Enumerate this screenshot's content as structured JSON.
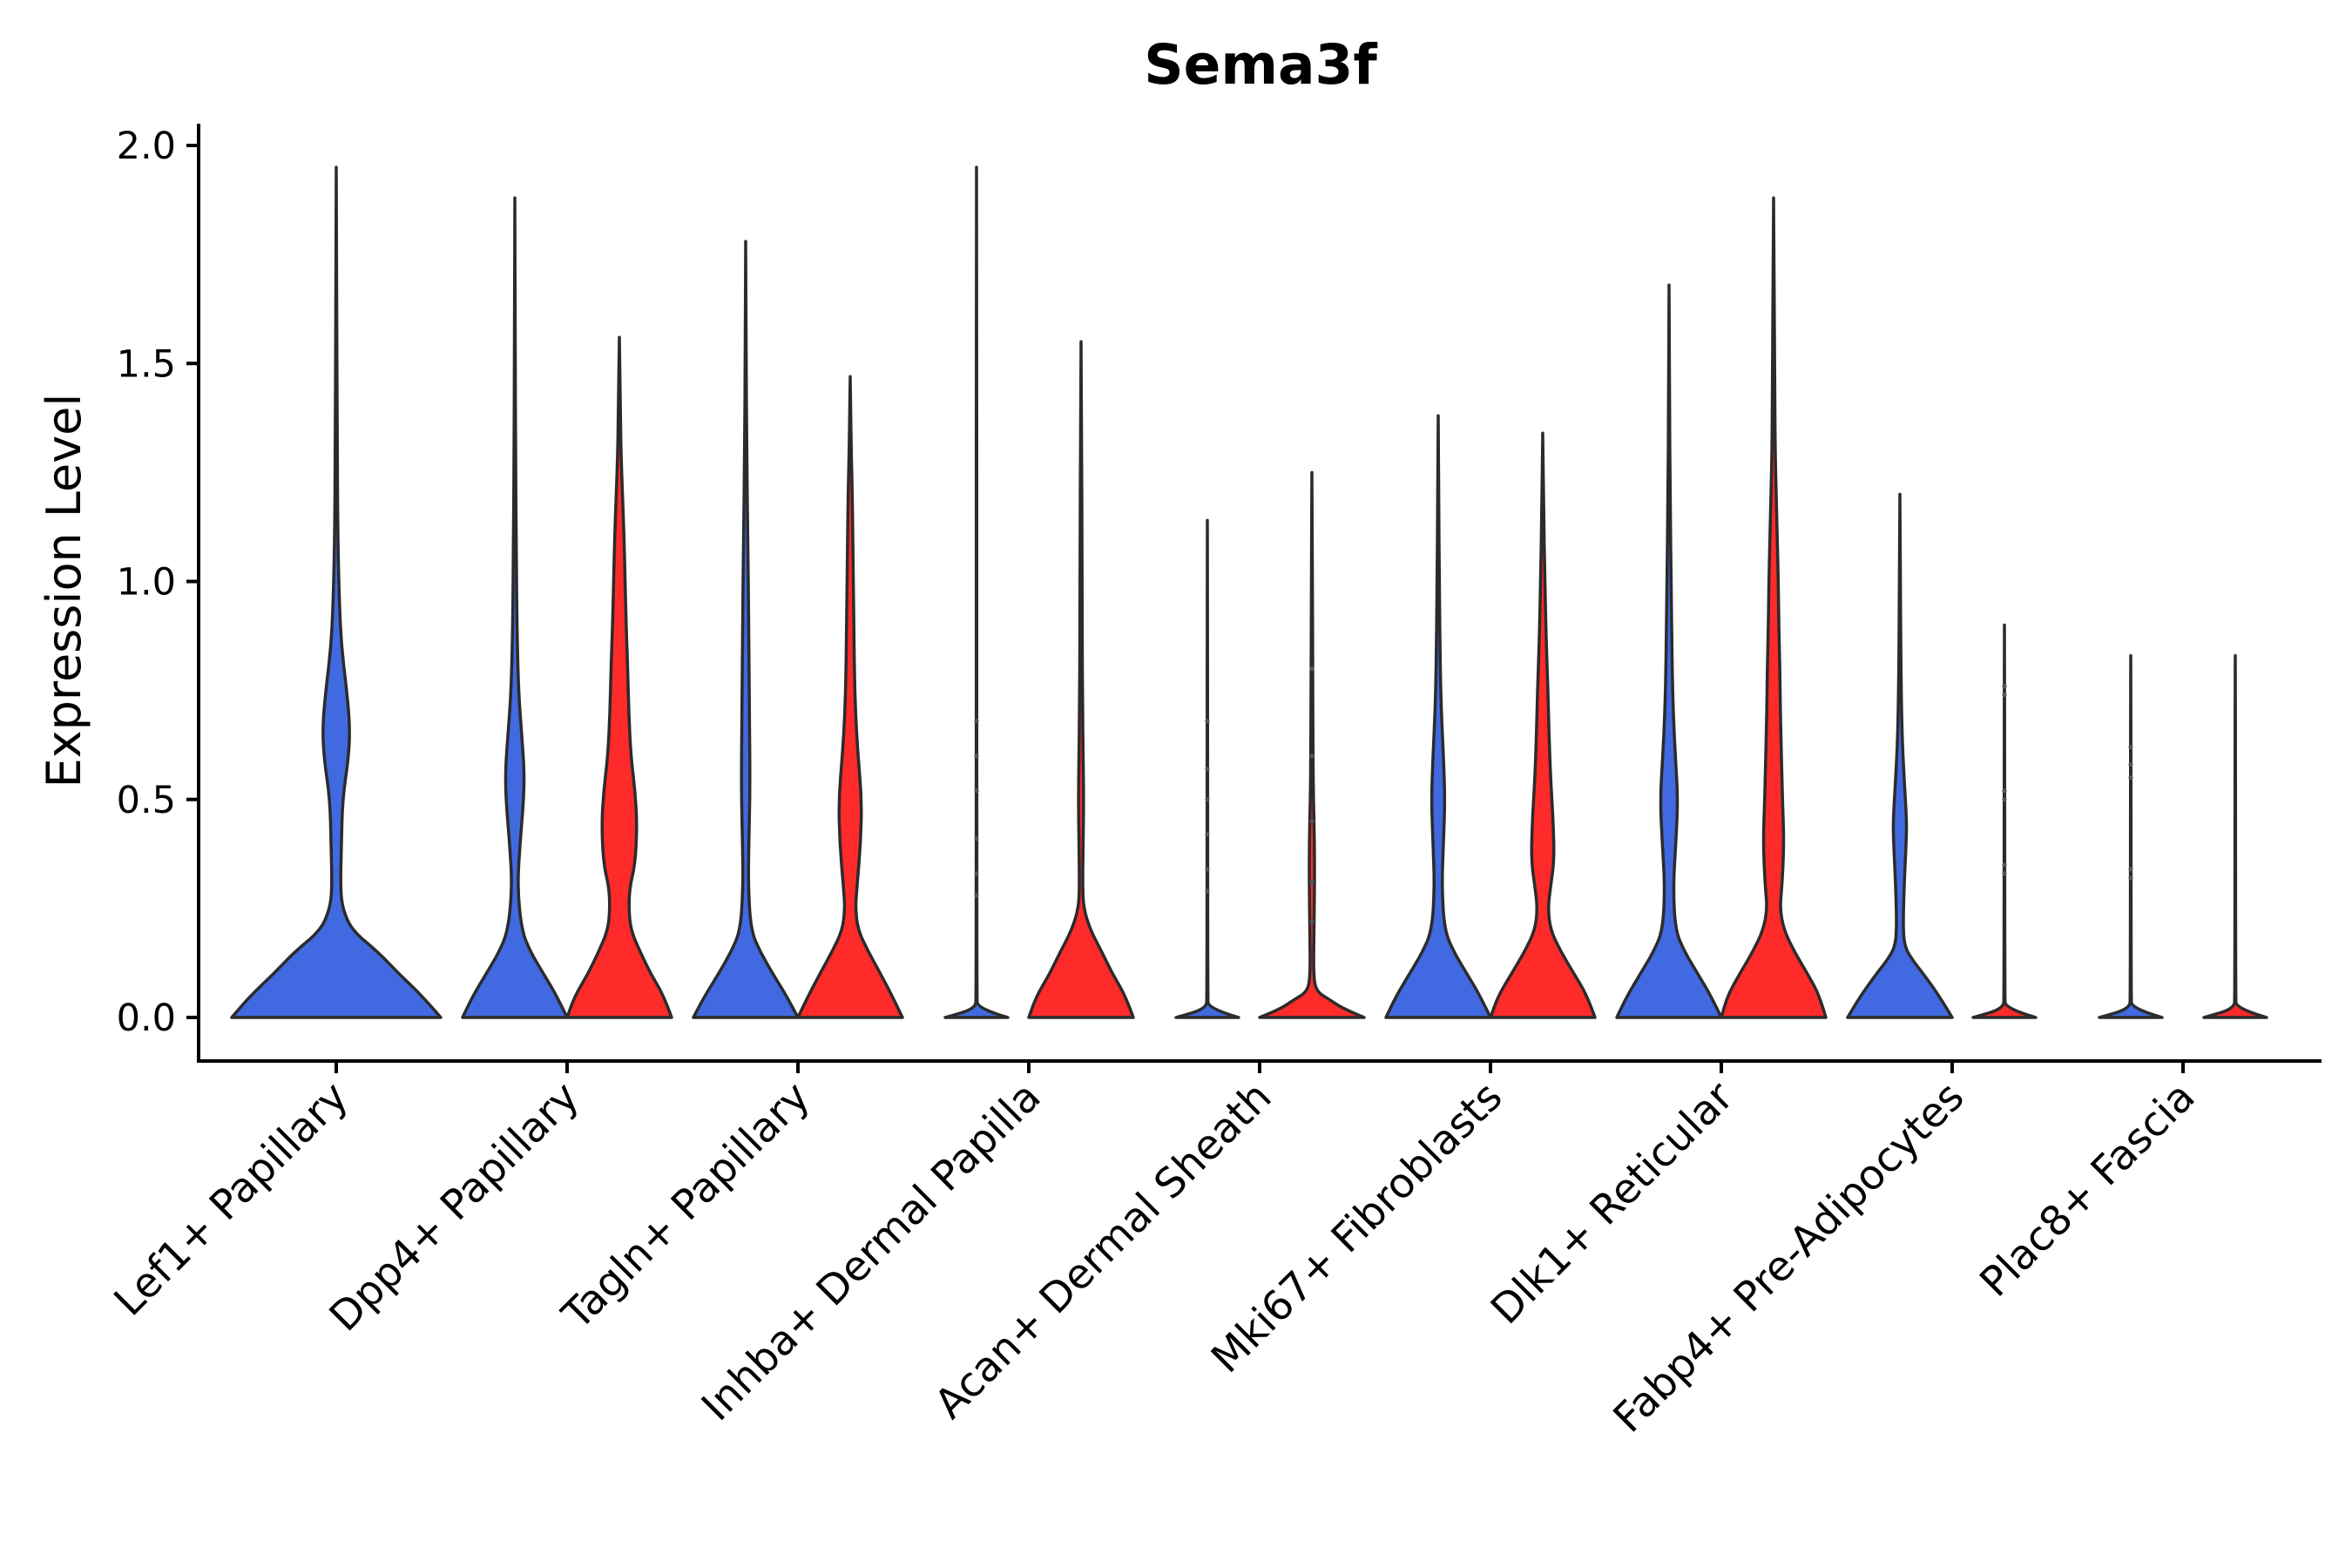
{
  "chart_data": {
    "type": "violin",
    "title": "Sema3f",
    "xlabel": "",
    "ylabel": "Expression Level",
    "ylim": [
      -0.1,
      2.05
    ],
    "yticks": [
      0.0,
      0.5,
      1.0,
      1.5,
      2.0
    ],
    "ytick_labels": [
      "0.0",
      "0.5",
      "1.0",
      "1.5",
      "2.0"
    ],
    "groups": [
      "Lef1+ Papillary",
      "Dpp4+ Papillary",
      "Tagln+ Papillary",
      "Inhba+ Dermal Papilla",
      "Acan+ Dermal Sheath",
      "Mki67+ Fibroblasts",
      "Dlk1+ Reticular",
      "Fabp4+ Pre-Adipocytes",
      "Plac8+ Fascia"
    ],
    "split_colors": {
      "blue": "#4169E1",
      "red": "#FF2A2A"
    },
    "violins": [
      {
        "group": 0,
        "side": "single",
        "color": "#4169E1",
        "max": 1.95,
        "profile": [
          [
            0,
            1.0
          ],
          [
            0.05,
            0.82
          ],
          [
            0.1,
            0.6
          ],
          [
            0.15,
            0.4
          ],
          [
            0.2,
            0.15
          ],
          [
            0.25,
            0.06
          ],
          [
            0.3,
            0.04
          ],
          [
            0.4,
            0.05
          ],
          [
            0.5,
            0.06
          ],
          [
            0.6,
            0.12
          ],
          [
            0.67,
            0.13
          ],
          [
            0.75,
            0.1
          ],
          [
            0.85,
            0.05
          ],
          [
            0.95,
            0.03
          ],
          [
            1.1,
            0.015
          ],
          [
            1.3,
            0.01
          ],
          [
            1.5,
            0.006
          ],
          [
            1.7,
            0.004
          ],
          [
            1.95,
            0.0
          ]
        ]
      },
      {
        "group": 1,
        "side": "blue",
        "color": "#4169E1",
        "max": 1.88,
        "profile": [
          [
            0,
            1.0
          ],
          [
            0.05,
            0.8
          ],
          [
            0.1,
            0.55
          ],
          [
            0.15,
            0.3
          ],
          [
            0.2,
            0.13
          ],
          [
            0.3,
            0.05
          ],
          [
            0.4,
            0.1
          ],
          [
            0.5,
            0.17
          ],
          [
            0.57,
            0.18
          ],
          [
            0.65,
            0.13
          ],
          [
            0.75,
            0.07
          ],
          [
            0.9,
            0.04
          ],
          [
            1.1,
            0.025
          ],
          [
            1.3,
            0.015
          ],
          [
            1.5,
            0.008
          ],
          [
            1.7,
            0.004
          ],
          [
            1.88,
            0.0
          ]
        ]
      },
      {
        "group": 1,
        "side": "red",
        "color": "#FF2A2A",
        "max": 1.56,
        "profile": [
          [
            0,
            1.0
          ],
          [
            0.05,
            0.85
          ],
          [
            0.1,
            0.6
          ],
          [
            0.15,
            0.4
          ],
          [
            0.2,
            0.22
          ],
          [
            0.25,
            0.18
          ],
          [
            0.3,
            0.2
          ],
          [
            0.35,
            0.3
          ],
          [
            0.44,
            0.34
          ],
          [
            0.52,
            0.3
          ],
          [
            0.6,
            0.22
          ],
          [
            0.7,
            0.18
          ],
          [
            0.8,
            0.16
          ],
          [
            0.9,
            0.13
          ],
          [
            1.0,
            0.11
          ],
          [
            1.1,
            0.09
          ],
          [
            1.2,
            0.06
          ],
          [
            1.3,
            0.03
          ],
          [
            1.4,
            0.02
          ],
          [
            1.56,
            0.0
          ]
        ]
      },
      {
        "group": 2,
        "side": "blue",
        "color": "#4169E1",
        "max": 1.78,
        "profile": [
          [
            0,
            1.0
          ],
          [
            0.05,
            0.78
          ],
          [
            0.1,
            0.52
          ],
          [
            0.15,
            0.28
          ],
          [
            0.2,
            0.1
          ],
          [
            0.3,
            0.05
          ],
          [
            0.4,
            0.06
          ],
          [
            0.5,
            0.08
          ],
          [
            0.6,
            0.08
          ],
          [
            0.7,
            0.07
          ],
          [
            0.9,
            0.06
          ],
          [
            1.1,
            0.04
          ],
          [
            1.3,
            0.02
          ],
          [
            1.5,
            0.01
          ],
          [
            1.78,
            0.0
          ]
        ]
      },
      {
        "group": 2,
        "side": "red",
        "color": "#FF2A2A",
        "max": 1.47,
        "profile": [
          [
            0,
            1.0
          ],
          [
            0.05,
            0.8
          ],
          [
            0.1,
            0.58
          ],
          [
            0.15,
            0.35
          ],
          [
            0.2,
            0.15
          ],
          [
            0.25,
            0.1
          ],
          [
            0.3,
            0.13
          ],
          [
            0.4,
            0.2
          ],
          [
            0.5,
            0.22
          ],
          [
            0.6,
            0.15
          ],
          [
            0.7,
            0.1
          ],
          [
            0.8,
            0.08
          ],
          [
            0.9,
            0.07
          ],
          [
            1.0,
            0.06
          ],
          [
            1.1,
            0.05
          ],
          [
            1.2,
            0.04
          ],
          [
            1.3,
            0.02
          ],
          [
            1.47,
            0.0
          ]
        ]
      },
      {
        "group": 3,
        "side": "blue",
        "color": "#4169E1",
        "max": 1.95,
        "profile": [
          [
            0,
            0.6
          ],
          [
            0.02,
            0.02
          ],
          [
            0.05,
            0.008
          ],
          [
            0.5,
            0.005
          ],
          [
            1.0,
            0.005
          ],
          [
            1.5,
            0.004
          ],
          [
            1.95,
            0.0
          ]
        ]
      },
      {
        "group": 3,
        "side": "red",
        "color": "#FF2A2A",
        "max": 1.55,
        "profile": [
          [
            0,
            1.0
          ],
          [
            0.05,
            0.85
          ],
          [
            0.1,
            0.6
          ],
          [
            0.15,
            0.4
          ],
          [
            0.2,
            0.18
          ],
          [
            0.25,
            0.05
          ],
          [
            0.3,
            0.03
          ],
          [
            0.4,
            0.04
          ],
          [
            0.5,
            0.05
          ],
          [
            0.6,
            0.04
          ],
          [
            0.7,
            0.03
          ],
          [
            0.9,
            0.02
          ],
          [
            1.1,
            0.02
          ],
          [
            1.3,
            0.01
          ],
          [
            1.55,
            0.0
          ]
        ]
      },
      {
        "group": 4,
        "side": "blue",
        "color": "#4169E1",
        "max": 1.14,
        "profile": [
          [
            0,
            0.6
          ],
          [
            0.02,
            0.02
          ],
          [
            0.05,
            0.008
          ],
          [
            0.5,
            0.005
          ],
          [
            1.14,
            0.0
          ]
        ]
      },
      {
        "group": 4,
        "side": "red",
        "color": "#FF2A2A",
        "max": 1.25,
        "profile": [
          [
            0,
            1.0
          ],
          [
            0.02,
            0.6
          ],
          [
            0.04,
            0.35
          ],
          [
            0.06,
            0.08
          ],
          [
            0.1,
            0.03
          ],
          [
            0.2,
            0.04
          ],
          [
            0.3,
            0.05
          ],
          [
            0.4,
            0.05
          ],
          [
            0.5,
            0.03
          ],
          [
            0.6,
            0.02
          ],
          [
            0.8,
            0.015
          ],
          [
            1.0,
            0.01
          ],
          [
            1.25,
            0.0
          ]
        ]
      },
      {
        "group": 5,
        "side": "blue",
        "color": "#4169E1",
        "max": 1.38,
        "profile": [
          [
            0,
            1.0
          ],
          [
            0.05,
            0.8
          ],
          [
            0.1,
            0.55
          ],
          [
            0.15,
            0.3
          ],
          [
            0.2,
            0.12
          ],
          [
            0.3,
            0.07
          ],
          [
            0.4,
            0.1
          ],
          [
            0.5,
            0.13
          ],
          [
            0.6,
            0.1
          ],
          [
            0.7,
            0.06
          ],
          [
            0.8,
            0.04
          ],
          [
            1.0,
            0.02
          ],
          [
            1.2,
            0.01
          ],
          [
            1.38,
            0.0
          ]
        ]
      },
      {
        "group": 5,
        "side": "red",
        "color": "#FF2A2A",
        "max": 1.34,
        "profile": [
          [
            0,
            1.0
          ],
          [
            0.05,
            0.85
          ],
          [
            0.1,
            0.6
          ],
          [
            0.15,
            0.35
          ],
          [
            0.2,
            0.15
          ],
          [
            0.25,
            0.1
          ],
          [
            0.3,
            0.15
          ],
          [
            0.36,
            0.22
          ],
          [
            0.45,
            0.2
          ],
          [
            0.55,
            0.15
          ],
          [
            0.65,
            0.12
          ],
          [
            0.75,
            0.1
          ],
          [
            0.85,
            0.07
          ],
          [
            1.0,
            0.04
          ],
          [
            1.15,
            0.02
          ],
          [
            1.34,
            0.0
          ]
        ]
      },
      {
        "group": 6,
        "side": "blue",
        "color": "#4169E1",
        "max": 1.68,
        "profile": [
          [
            0,
            1.0
          ],
          [
            0.05,
            0.8
          ],
          [
            0.1,
            0.55
          ],
          [
            0.15,
            0.3
          ],
          [
            0.2,
            0.12
          ],
          [
            0.3,
            0.08
          ],
          [
            0.4,
            0.13
          ],
          [
            0.5,
            0.17
          ],
          [
            0.6,
            0.12
          ],
          [
            0.7,
            0.08
          ],
          [
            0.8,
            0.06
          ],
          [
            1.0,
            0.04
          ],
          [
            1.2,
            0.02
          ],
          [
            1.4,
            0.01
          ],
          [
            1.68,
            0.0
          ]
        ]
      },
      {
        "group": 6,
        "side": "red",
        "color": "#FF2A2A",
        "max": 1.88,
        "profile": [
          [
            0,
            1.0
          ],
          [
            0.05,
            0.88
          ],
          [
            0.1,
            0.65
          ],
          [
            0.15,
            0.4
          ],
          [
            0.2,
            0.2
          ],
          [
            0.25,
            0.12
          ],
          [
            0.3,
            0.16
          ],
          [
            0.4,
            0.2
          ],
          [
            0.5,
            0.17
          ],
          [
            0.6,
            0.15
          ],
          [
            0.7,
            0.13
          ],
          [
            0.8,
            0.12
          ],
          [
            0.9,
            0.1
          ],
          [
            1.0,
            0.09
          ],
          [
            1.1,
            0.07
          ],
          [
            1.2,
            0.05
          ],
          [
            1.3,
            0.03
          ],
          [
            1.5,
            0.02
          ],
          [
            1.7,
            0.01
          ],
          [
            1.88,
            0.0
          ]
        ]
      },
      {
        "group": 7,
        "side": "blue",
        "color": "#4169E1",
        "max": 1.2,
        "profile": [
          [
            0,
            1.0
          ],
          [
            0.05,
            0.75
          ],
          [
            0.1,
            0.45
          ],
          [
            0.13,
            0.25
          ],
          [
            0.16,
            0.1
          ],
          [
            0.2,
            0.06
          ],
          [
            0.3,
            0.08
          ],
          [
            0.4,
            0.12
          ],
          [
            0.45,
            0.13
          ],
          [
            0.55,
            0.08
          ],
          [
            0.65,
            0.04
          ],
          [
            0.8,
            0.02
          ],
          [
            1.0,
            0.01
          ],
          [
            1.2,
            0.0
          ]
        ]
      },
      {
        "group": 7,
        "side": "red",
        "color": "#FF2A2A",
        "max": 0.9,
        "profile": [
          [
            0,
            0.6
          ],
          [
            0.02,
            0.02
          ],
          [
            0.05,
            0.008
          ],
          [
            0.5,
            0.005
          ],
          [
            0.9,
            0.0
          ]
        ]
      },
      {
        "group": 8,
        "side": "blue",
        "color": "#4169E1",
        "max": 0.83,
        "profile": [
          [
            0,
            0.6
          ],
          [
            0.02,
            0.02
          ],
          [
            0.05,
            0.008
          ],
          [
            0.5,
            0.005
          ],
          [
            0.83,
            0.0
          ]
        ]
      },
      {
        "group": 8,
        "side": "red",
        "color": "#FF2A2A",
        "max": 0.83,
        "profile": [
          [
            0,
            0.6
          ],
          [
            0.02,
            0.02
          ],
          [
            0.05,
            0.008
          ],
          [
            0.5,
            0.005
          ],
          [
            0.83,
            0.0
          ]
        ]
      }
    ],
    "outlier_points": [
      {
        "group": 3,
        "side": "blue",
        "values": [
          0.28,
          0.33,
          0.41,
          0.52,
          0.6,
          0.68
        ]
      },
      {
        "group": 4,
        "side": "blue",
        "values": [
          0.29,
          0.34,
          0.42,
          0.5,
          0.57,
          0.68
        ]
      },
      {
        "group": 4,
        "side": "red",
        "values": [
          0.22,
          0.31,
          0.45,
          0.6,
          0.8
        ]
      },
      {
        "group": 7,
        "side": "red",
        "values": [
          0.33,
          0.35,
          0.5,
          0.52,
          0.74,
          0.76
        ]
      },
      {
        "group": 8,
        "side": "blue",
        "values": [
          0.32,
          0.34,
          0.55,
          0.58,
          0.62
        ]
      }
    ]
  }
}
